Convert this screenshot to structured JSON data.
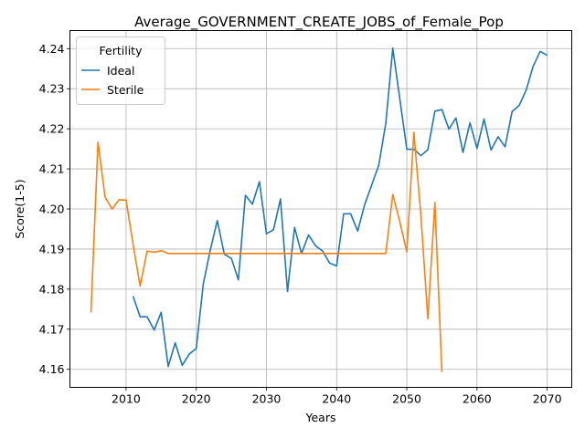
{
  "chart_data": {
    "type": "line",
    "title": "Average_GOVERNMENT_CREATE_JOBS_of_Female_Pop",
    "xlabel": "Years",
    "ylabel": "Score(1-5)",
    "xlim": [
      2002,
      2073.5
    ],
    "ylim": [
      4.1555,
      4.2445
    ],
    "xticks": [
      2010,
      2020,
      2030,
      2040,
      2050,
      2060,
      2070
    ],
    "yticks": [
      4.16,
      4.17,
      4.18,
      4.19,
      4.2,
      4.21,
      4.22,
      4.23,
      4.24
    ],
    "ytick_labels": [
      "4.16",
      "4.17",
      "4.18",
      "4.19",
      "4.20",
      "4.21",
      "4.22",
      "4.23",
      "4.24"
    ],
    "grid": true,
    "legend": {
      "title": "Fertility",
      "placement": "top-left"
    },
    "series": [
      {
        "name": "Ideal",
        "color": "#1f77b4",
        "x": [
          2011,
          2012,
          2013,
          2014,
          2015,
          2016,
          2017,
          2018,
          2019,
          2020,
          2021,
          2022,
          2023,
          2024,
          2025,
          2026,
          2027,
          2028,
          2029,
          2030,
          2031,
          2032,
          2033,
          2034,
          2035,
          2036,
          2037,
          2038,
          2039,
          2040,
          2041,
          2042,
          2043,
          2044,
          2045,
          2046,
          2047,
          2048,
          2049,
          2050,
          2051,
          2052,
          2053,
          2054,
          2055,
          2056,
          2057,
          2058,
          2059,
          2060,
          2061,
          2062,
          2063,
          2064,
          2065,
          2066,
          2067,
          2068,
          2069,
          2070
        ],
        "y": [
          4.1782,
          4.1731,
          4.1731,
          4.1698,
          4.1742,
          4.1607,
          4.1666,
          4.161,
          4.1638,
          4.1652,
          4.1813,
          4.1898,
          4.1971,
          4.1887,
          4.1877,
          4.1823,
          4.2034,
          4.2012,
          4.2068,
          4.1938,
          4.1948,
          4.2025,
          4.1794,
          4.1954,
          4.1889,
          4.1935,
          4.1908,
          4.1895,
          4.1865,
          4.1858,
          4.1988,
          4.1988,
          4.1945,
          4.2011,
          4.206,
          4.2109,
          4.2213,
          4.2401,
          4.2275,
          4.2149,
          4.2149,
          4.2133,
          4.2148,
          4.2244,
          4.2248,
          4.2199,
          4.2227,
          4.2141,
          4.2215,
          4.2151,
          4.2224,
          4.2147,
          4.218,
          4.2155,
          4.2243,
          4.2258,
          4.2296,
          4.2356,
          4.2393,
          4.2383
        ]
      },
      {
        "name": "Sterile",
        "color": "#ff7f0e",
        "x": [
          2005,
          2006,
          2007,
          2008,
          2009,
          2010,
          2011,
          2012,
          2013,
          2014,
          2015,
          2016,
          2017,
          2018,
          2019,
          2020,
          2021,
          2022,
          2023,
          2024,
          2025,
          2026,
          2027,
          2028,
          2029,
          2030,
          2031,
          2032,
          2033,
          2034,
          2035,
          2036,
          2037,
          2038,
          2039,
          2040,
          2041,
          2042,
          2043,
          2044,
          2045,
          2046,
          2047,
          2048,
          2049,
          2050,
          2051,
          2052,
          2053,
          2054,
          2055
        ],
        "y": [
          4.1742,
          4.2167,
          4.203,
          4.2,
          4.2023,
          4.2022,
          4.1912,
          4.1808,
          4.1895,
          4.1892,
          4.1896,
          4.1889,
          4.1889,
          4.1889,
          4.1889,
          4.1889,
          4.1889,
          4.1889,
          4.1889,
          4.1889,
          4.1889,
          4.1889,
          4.1889,
          4.1889,
          4.1889,
          4.1889,
          4.1889,
          4.1889,
          4.1889,
          4.1889,
          4.1889,
          4.1889,
          4.1889,
          4.1889,
          4.1889,
          4.1889,
          4.1889,
          4.1889,
          4.1889,
          4.1889,
          4.1889,
          4.1889,
          4.1889,
          4.2036,
          4.1968,
          4.1893,
          4.2191,
          4.1986,
          4.1726,
          4.2016,
          4.1593
        ]
      }
    ]
  }
}
